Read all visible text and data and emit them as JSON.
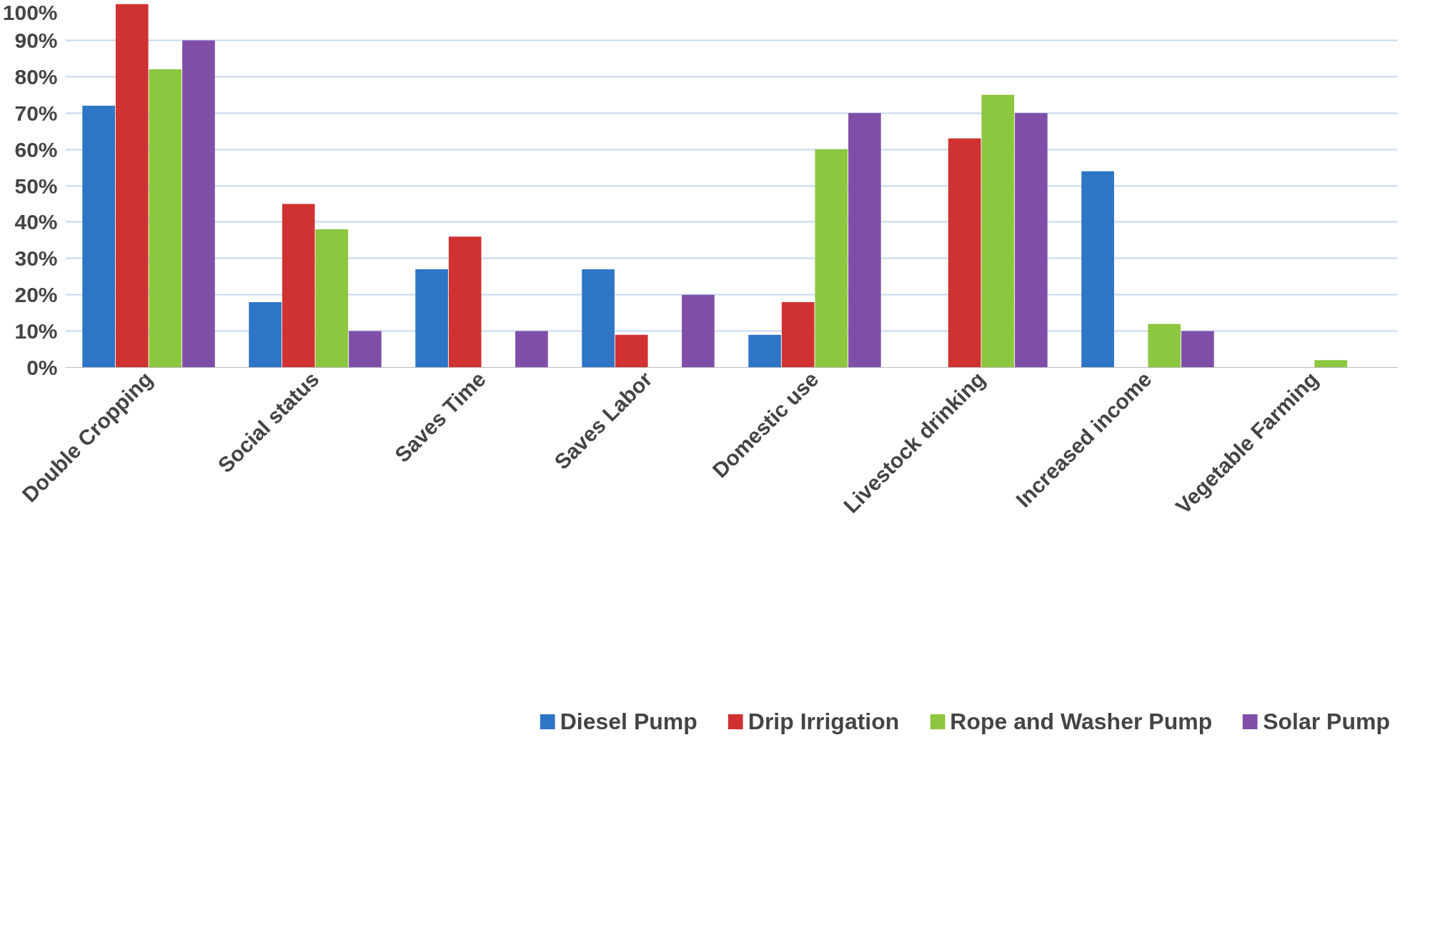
{
  "chart_data": {
    "type": "bar",
    "categories": [
      "Double Cropping",
      "Social status",
      "Saves Time",
      "Saves Labor",
      "Domestic use",
      "Livestock drinking",
      "Increased income",
      "Vegetable Farming"
    ],
    "series": [
      {
        "name": "Diesel Pump",
        "color": "#2e75c6",
        "values": [
          72,
          18,
          27,
          27,
          9,
          0,
          54,
          0
        ]
      },
      {
        "name": "Drip Irrigation",
        "color": "#d03232",
        "values": [
          100,
          45,
          36,
          9,
          18,
          63,
          0,
          0
        ]
      },
      {
        "name": "Rope and Washer Pump",
        "color": "#8dc63f",
        "values": [
          82,
          38,
          0,
          0,
          60,
          75,
          12,
          2
        ]
      },
      {
        "name": "Solar Pump",
        "color": "#7f4fa8",
        "values": [
          90,
          10,
          10,
          20,
          70,
          70,
          10,
          0
        ]
      }
    ],
    "ylim": [
      0,
      100
    ],
    "yticks": [
      {
        "value": 0,
        "label": "0%"
      },
      {
        "value": 10,
        "label": "10%"
      },
      {
        "value": 20,
        "label": "20%"
      },
      {
        "value": 30,
        "label": "30%"
      },
      {
        "value": 40,
        "label": "40%"
      },
      {
        "value": 50,
        "label": "50%"
      },
      {
        "value": 60,
        "label": "60%"
      },
      {
        "value": 70,
        "label": "70%"
      },
      {
        "value": 80,
        "label": "80%"
      },
      {
        "value": 90,
        "label": "90%"
      },
      {
        "value": 100,
        "label": "100%"
      }
    ],
    "grid": "y",
    "legend": "bottom"
  }
}
